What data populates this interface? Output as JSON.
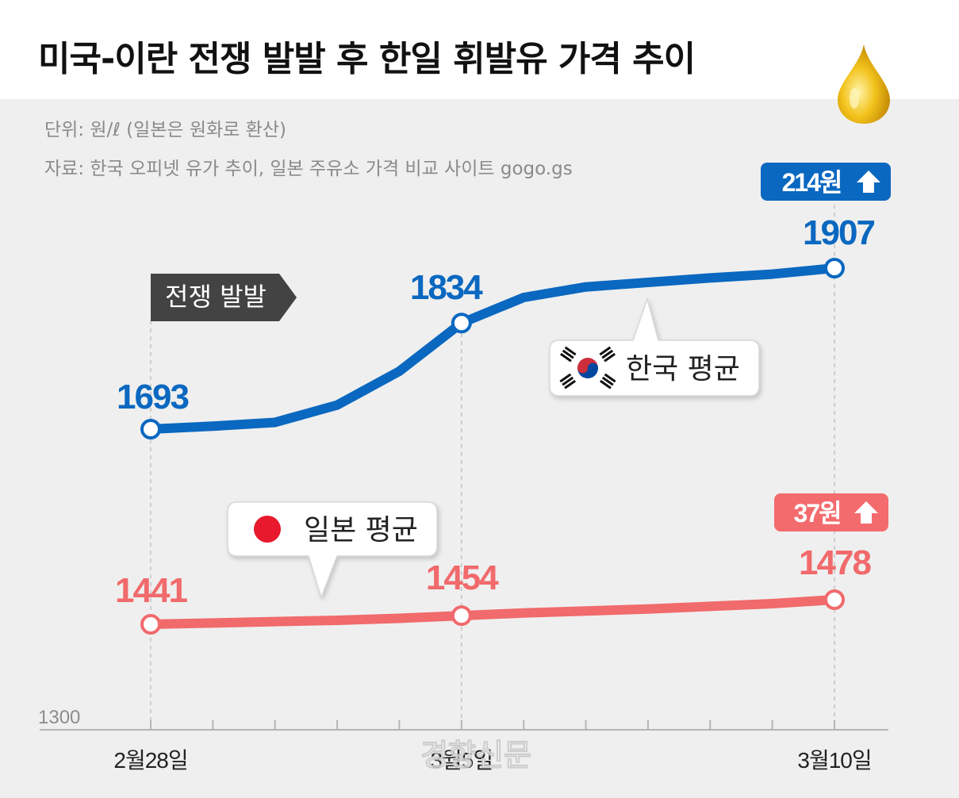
{
  "header": {
    "title": "미국-이란 전쟁 발발 후 한일 휘발유 가격 추이",
    "unit_note": "단위: 원/ℓ (일본은 원화로 환산)",
    "source_note": "자료: 한국 오피넷 유가 추이, 일본 주유소 가격 비교 사이트 gogo.gs"
  },
  "watermark": "경향신문",
  "chart_data": {
    "type": "line",
    "title": "미국-이란 전쟁 발발 후 한일 휘발유 가격 추이",
    "xlabel": "",
    "ylabel": "원/ℓ",
    "ylim": [
      1300,
      1950
    ],
    "baseline_label": "1300",
    "x_ticks": [
      "2월28일",
      "3월5일",
      "3월10일"
    ],
    "annotation_event": "전쟁 발발",
    "series": [
      {
        "name": "한국 평균",
        "color": "#0a68c0",
        "values": [
          1693,
          1697,
          1702,
          1725,
          1770,
          1834,
          1868,
          1882,
          1888,
          1894,
          1899,
          1907
        ],
        "labeled_values": [
          "1693",
          "1834",
          "1907"
        ],
        "change_label": "214원"
      },
      {
        "name": "일본 평균",
        "color": "#f16a6c",
        "values": [
          1441,
          1443,
          1445,
          1447,
          1450,
          1454,
          1458,
          1461,
          1464,
          1468,
          1472,
          1478
        ],
        "labeled_values": [
          "1441",
          "1454",
          "1478"
        ],
        "change_label": "37원"
      }
    ]
  },
  "icons": {
    "up_arrow": "up-arrow-icon",
    "oil_drop": "oil-drop-icon",
    "korea_flag": "korea-flag-icon",
    "japan_flag": "japan-flag-icon"
  }
}
